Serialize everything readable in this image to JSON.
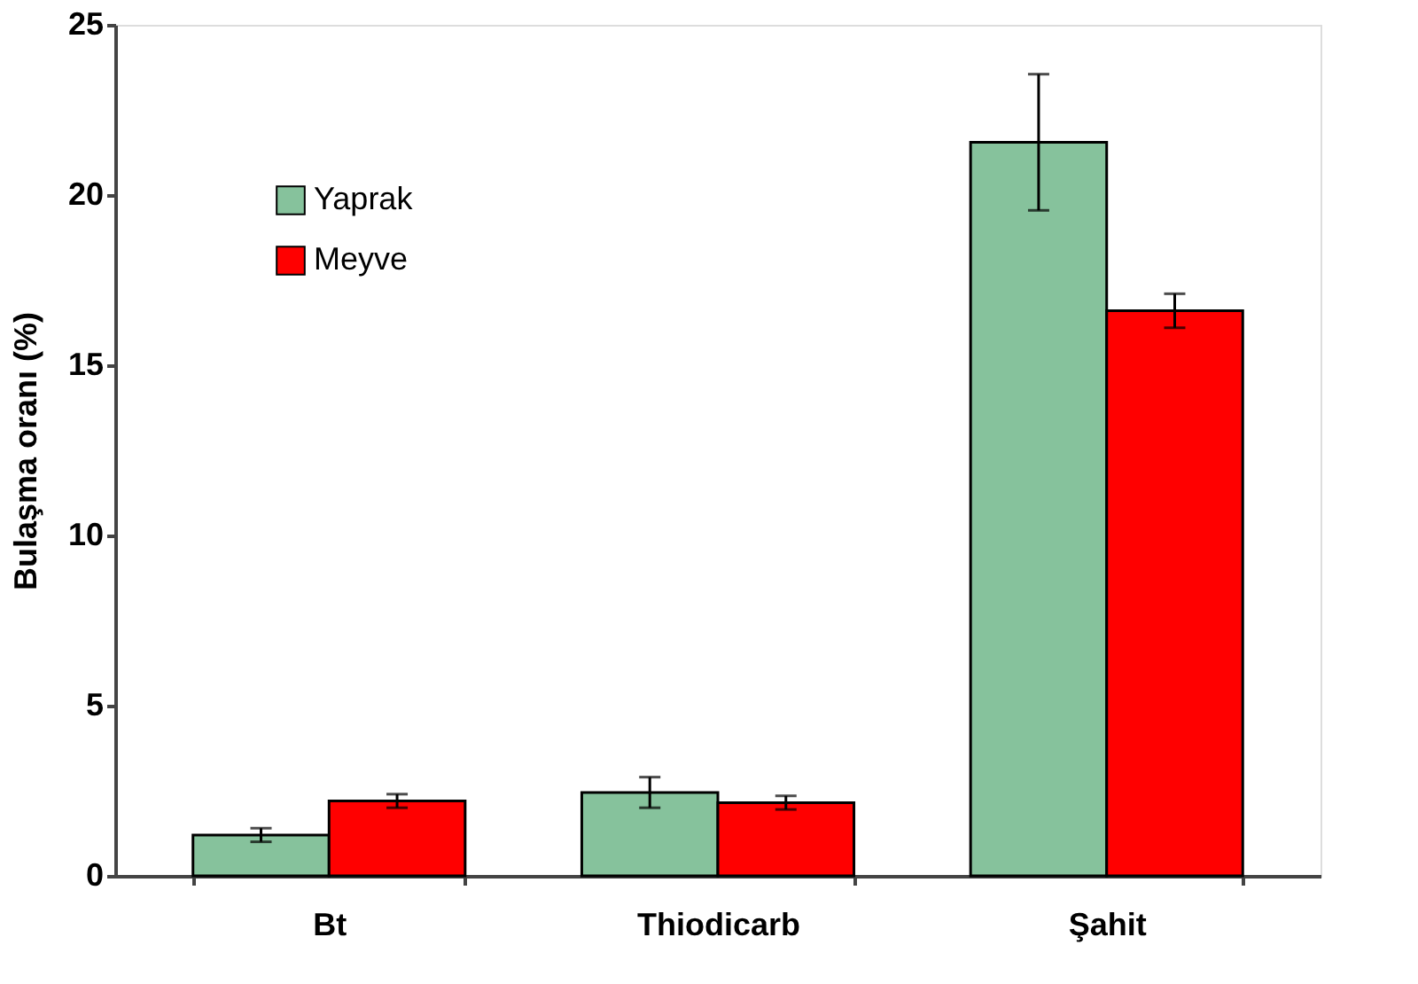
{
  "chart_data": {
    "type": "bar",
    "ylabel": "Bulaşma oranı (%)",
    "categories": [
      "Bt",
      "Thiodicarb",
      "Şahit"
    ],
    "series": [
      {
        "name": "Yaprak",
        "color": "#86c29c",
        "values": [
          1.2,
          2.45,
          21.55
        ],
        "errors": [
          0.2,
          0.45,
          2.0
        ]
      },
      {
        "name": "Meyve",
        "color": "#ff0000",
        "values": [
          2.2,
          2.15,
          16.6
        ],
        "errors": [
          0.2,
          0.2,
          0.5
        ]
      }
    ],
    "ylim": [
      0,
      25
    ],
    "yticks": [
      0,
      5,
      10,
      15,
      20,
      25
    ],
    "grid": false,
    "legend": "top left"
  }
}
